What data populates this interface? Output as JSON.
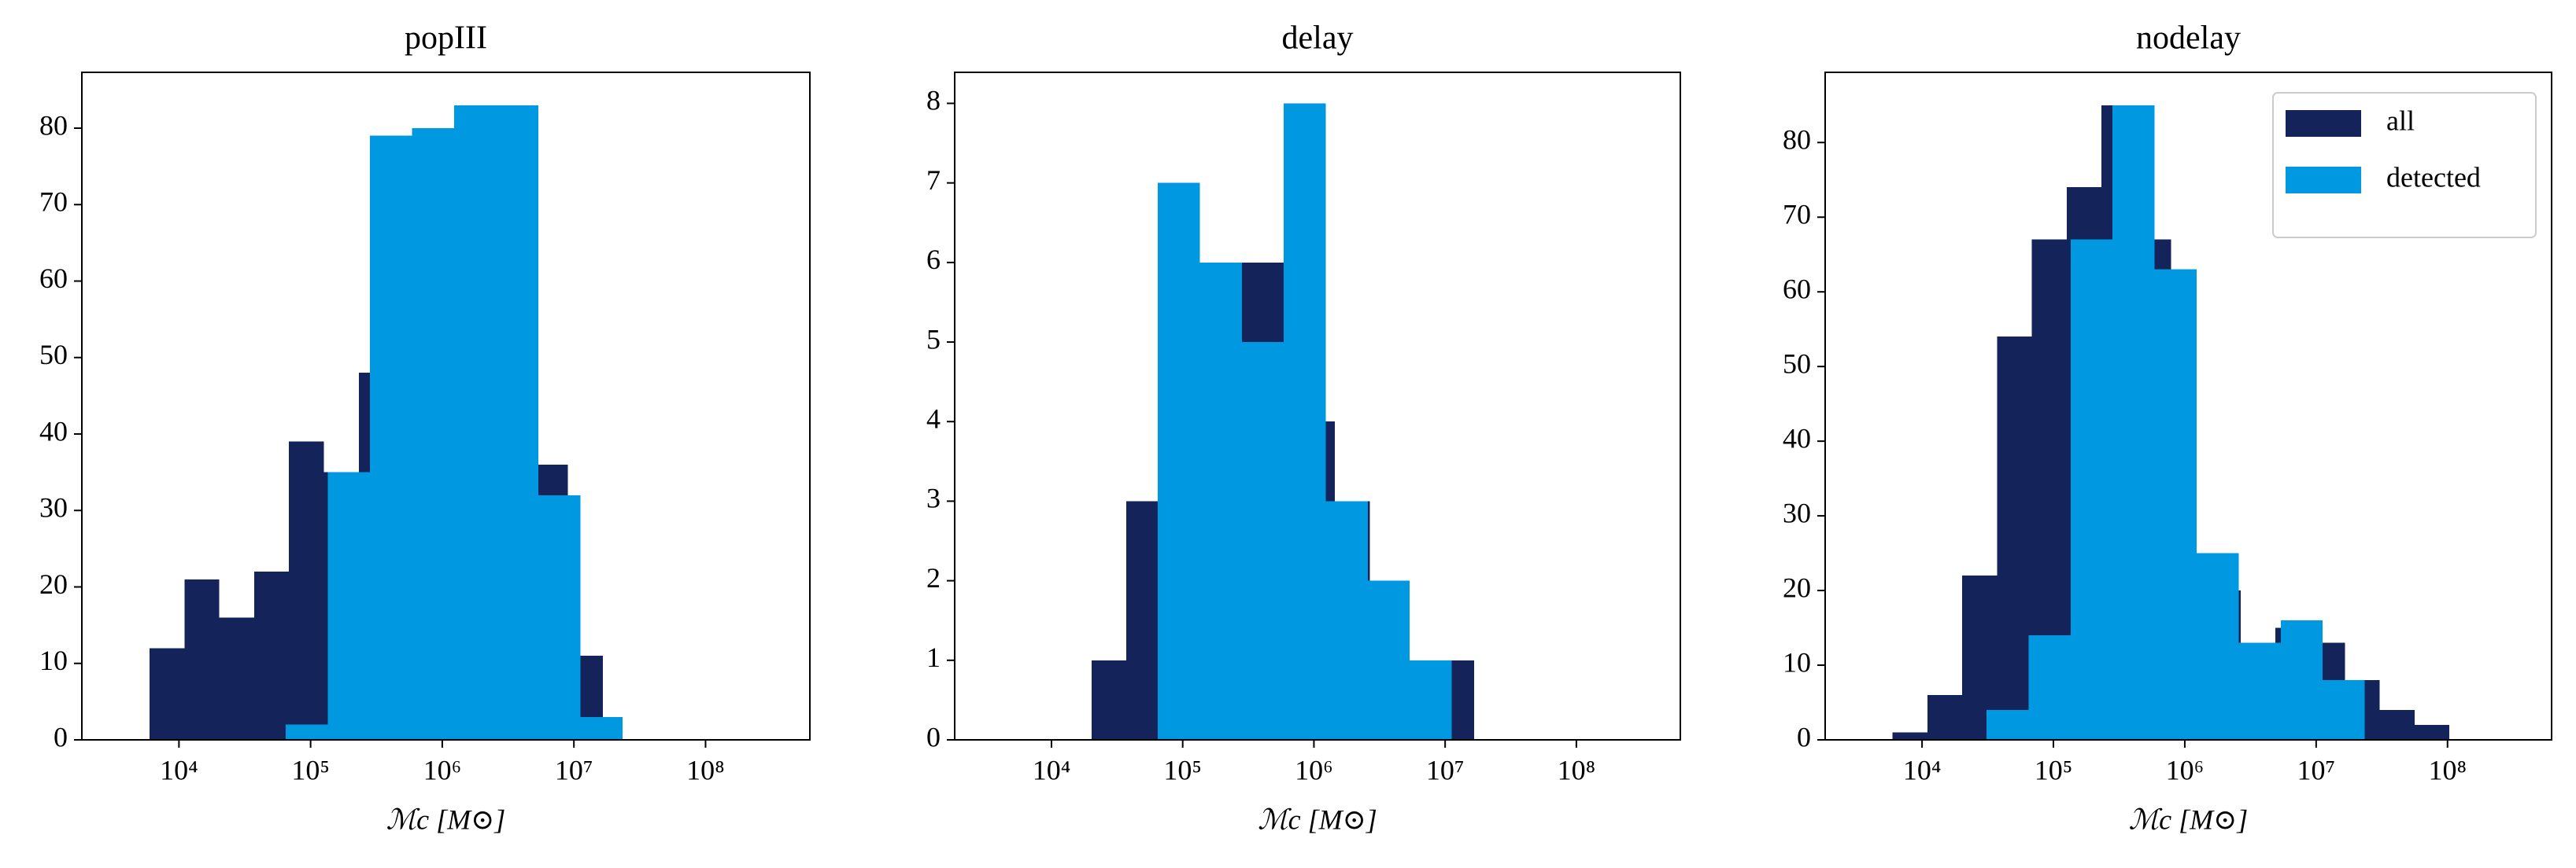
{
  "chart_data": [
    {
      "type": "histogram",
      "title": "popIII",
      "xlabel": "ℳc [M⊙]",
      "xscale": "log",
      "xlim": [
        1830,
        620000000
      ],
      "ylim": [
        0,
        87.3
      ],
      "xticks": [
        {
          "value": 10000,
          "label": "10⁴"
        },
        {
          "value": 100000,
          "label": "10⁵"
        },
        {
          "value": 1000000,
          "label": "10⁶"
        },
        {
          "value": 10000000,
          "label": "10⁷"
        },
        {
          "value": 100000000,
          "label": "10⁸"
        }
      ],
      "yticks": [
        0,
        10,
        20,
        30,
        40,
        50,
        60,
        70,
        80
      ],
      "series": [
        {
          "color": "#14245a",
          "bins": [
            5960,
            11000,
            20200,
            37200,
            68400,
            126000,
            232000,
            427000,
            785000,
            1445000,
            2660000,
            4900000,
            9020000,
            16600000
          ],
          "values": [
            12,
            21,
            16,
            22,
            39,
            35,
            48,
            79,
            80,
            83,
            83,
            36,
            11
          ]
        },
        {
          "color": "#0098e0",
          "bins": [
            64600,
            135000,
            282000,
            589000,
            1230000,
            2570000,
            5370000,
            11200000,
            23400000
          ],
          "values": [
            2,
            35,
            79,
            80,
            83,
            83,
            32,
            3
          ]
        }
      ]
    },
    {
      "type": "histogram",
      "title": "delay",
      "xlabel": "ℳc [M⊙]",
      "xscale": "log",
      "xlim": [
        1830,
        620000000
      ],
      "ylim": [
        0,
        8.39
      ],
      "xticks": [
        {
          "value": 10000,
          "label": "10⁴"
        },
        {
          "value": 100000,
          "label": "10⁵"
        },
        {
          "value": 1000000,
          "label": "10⁶"
        },
        {
          "value": 10000000,
          "label": "10⁷"
        },
        {
          "value": 100000000,
          "label": "10⁸"
        }
      ],
      "yticks": [
        0,
        1,
        2,
        3,
        4,
        5,
        6,
        7,
        8
      ],
      "series": [
        {
          "color": "#14245a",
          "bins": [
            20200,
            37200,
            68400,
            126000,
            232000,
            427000,
            785000,
            1445000,
            2660000,
            4900000,
            9020000,
            16600000
          ],
          "values": [
            1,
            3,
            6,
            5,
            6,
            6,
            4,
            3,
            2,
            1,
            1
          ]
        },
        {
          "color": "#0098e0",
          "bins": [
            64600,
            135000,
            282000,
            589000,
            1230000,
            2570000,
            5370000,
            11200000
          ],
          "values": [
            7,
            6,
            5,
            8,
            3,
            2,
            1
          ]
        }
      ]
    },
    {
      "type": "histogram",
      "title": "nodelay",
      "xlabel": "ℳc [M⊙]",
      "xscale": "log",
      "xlim": [
        1830,
        620000000
      ],
      "ylim": [
        0,
        89.4
      ],
      "xticks": [
        {
          "value": 10000,
          "label": "10⁴"
        },
        {
          "value": 100000,
          "label": "10⁵"
        },
        {
          "value": 1000000,
          "label": "10⁶"
        },
        {
          "value": 10000000,
          "label": "10⁷"
        },
        {
          "value": 100000000,
          "label": "10⁸"
        }
      ],
      "yticks": [
        0,
        10,
        20,
        30,
        40,
        50,
        60,
        70,
        80
      ],
      "legend": "upper right",
      "series": [
        {
          "name": "all",
          "color": "#14245a",
          "bins": [
            5960,
            11000,
            20200,
            37200,
            68400,
            126000,
            232000,
            427000,
            785000,
            1445000,
            2660000,
            4900000,
            9020000,
            16600000,
            30500000,
            56200000,
            103500000
          ],
          "values": [
            1,
            6,
            22,
            54,
            67,
            74,
            85,
            67,
            25,
            20,
            13,
            15,
            13,
            8,
            4,
            2
          ]
        },
        {
          "name": "detected",
          "color": "#0098e0",
          "bins": [
            30900,
            64600,
            135000,
            282000,
            589000,
            1230000,
            2570000,
            5370000,
            11200000,
            23400000
          ],
          "values": [
            4,
            14,
            67,
            85,
            63,
            25,
            13,
            16,
            8
          ]
        }
      ]
    }
  ]
}
